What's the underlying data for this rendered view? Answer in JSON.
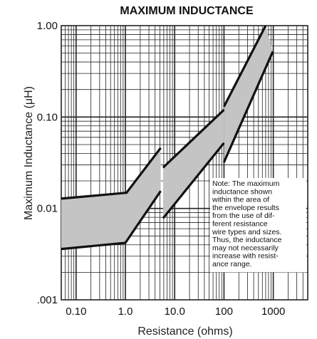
{
  "chart_data": {
    "type": "area",
    "title": "MAXIMUM INDUCTANCE",
    "xlabel": "Resistance (ohms)",
    "ylabel": "Maximum Inductance (μH)",
    "xscale": "log",
    "yscale": "log",
    "xlim": [
      0.05,
      5000
    ],
    "ylim": [
      0.001,
      1.0
    ],
    "grid": true,
    "x_tick_labels": [
      {
        "value": 0.1,
        "label": "0.10"
      },
      {
        "value": 1,
        "label": "1.0"
      },
      {
        "value": 10,
        "label": "10.0"
      },
      {
        "value": 100,
        "label": "100"
      },
      {
        "value": 1000,
        "label": "1000"
      }
    ],
    "y_tick_labels": [
      {
        "value": 1.0,
        "label": "1.00"
      },
      {
        "value": 0.1,
        "label": "0.10"
      },
      {
        "value": 0.01,
        "label": "0.01"
      },
      {
        "value": 0.001,
        "label": ".001"
      }
    ],
    "envelope_segments": [
      {
        "upper": [
          [
            0.05,
            0.0128
          ],
          [
            1.0,
            0.0148
          ],
          [
            1.05,
            0.0148
          ],
          [
            5.2,
            0.046
          ]
        ],
        "lower": [
          [
            0.05,
            0.0036
          ],
          [
            1.0,
            0.0042
          ],
          [
            5.2,
            0.0155
          ]
        ]
      },
      {
        "upper": [
          [
            5.8,
            0.028
          ],
          [
            100,
            0.12
          ]
        ],
        "lower": [
          [
            5.8,
            0.0078
          ],
          [
            100,
            0.052
          ]
        ]
      },
      {
        "upper": [
          [
            100,
            0.13
          ],
          [
            700,
            1.0
          ]
        ],
        "lower": [
          [
            100,
            0.032
          ],
          [
            980,
            0.52
          ]
        ]
      }
    ],
    "annotation": [
      "Note: The maximum",
      "inductance shown",
      "within the area of",
      "the envelope results",
      "from the use of dif-",
      "ferent resistance",
      "wire types and sizes.",
      "Thus, the inductance",
      "may not necessarily",
      "increase with resist-",
      "ance range."
    ],
    "colors": {
      "fill": "#c4c4c4",
      "outline": "#111111",
      "grid": "#222222"
    }
  }
}
